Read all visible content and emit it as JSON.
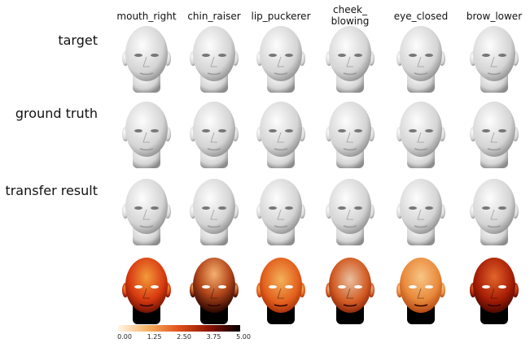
{
  "columns": [
    "mouth_right",
    "chin_raiser",
    "lip_puckerer",
    "cheek_\nblowing",
    "eye_closed",
    "brow_lower"
  ],
  "rows": [
    "target",
    "ground truth",
    "transfer result"
  ],
  "colorbar": {
    "ticks": [
      "0.00",
      "1.25",
      "2.50",
      "3.75",
      "5.00"
    ]
  }
}
